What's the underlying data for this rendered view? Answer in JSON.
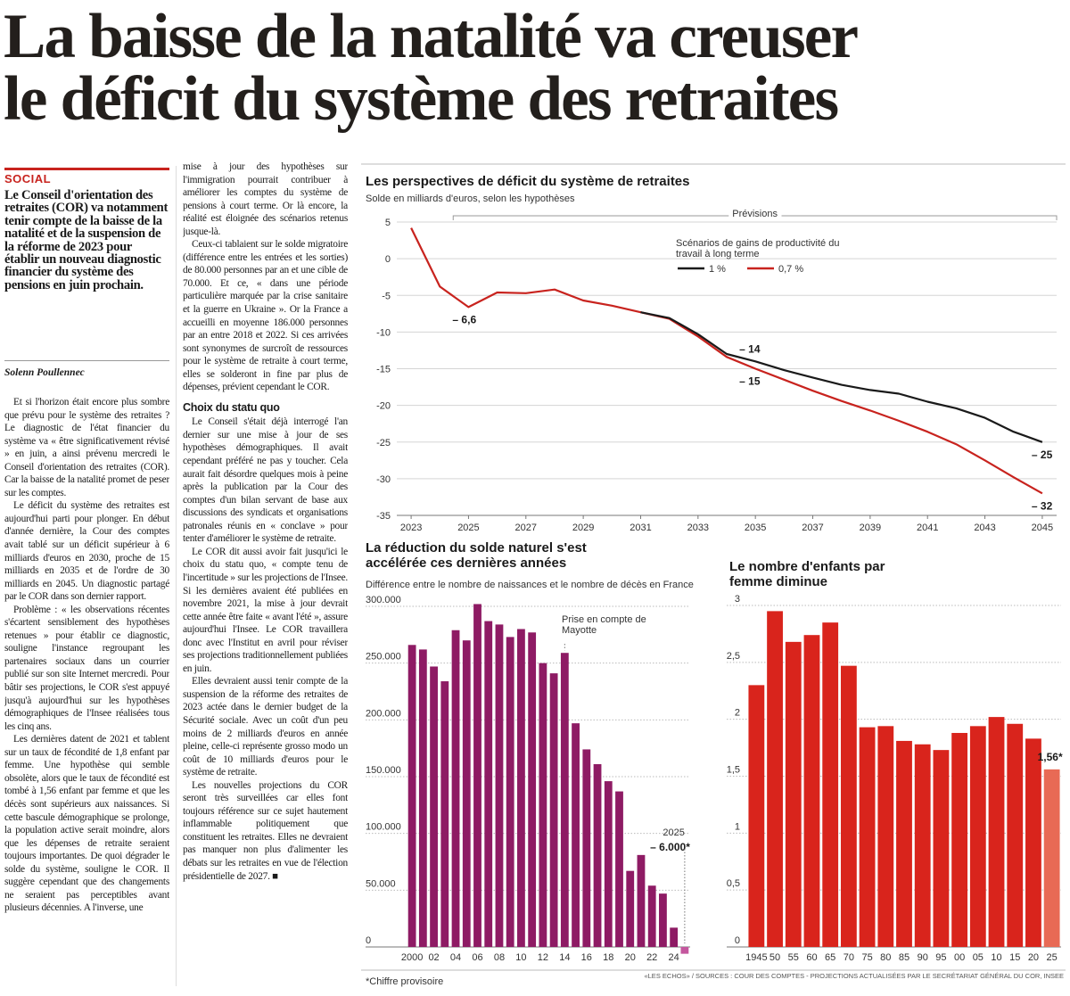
{
  "headline": [
    "La baisse de la natalité va creuser",
    "le déficit du système des retraites"
  ],
  "article": {
    "section": "SOCIAL",
    "lead": "Le Conseil d'orientation des retraites (COR) va notamment tenir compte de la baisse de la natalité et de la suspension de la réforme de 2023 pour établir un nouveau diagnostic financier du système des pensions en juin prochain.",
    "byline": "Solenn Poullennec",
    "column1": [
      "Et si l'horizon était encore plus sombre que prévu pour le système des retraites ? Le diagnostic de l'état financier du système va « être significativement révisé » en juin, a ainsi prévenu mercredi le Conseil d'orientation des retraites (COR). Car la baisse de la natalité promet de peser sur les comptes.",
      "Le déficit du système des retraites est aujourd'hui parti pour plonger. En début d'année dernière, la Cour des comptes avait tablé sur un déficit supérieur à 6 milliards d'euros en 2030, proche de 15 milliards en 2035 et de l'ordre de 30 milliards en 2045. Un diagnostic partagé par le COR dans son dernier rapport.",
      "Problème : « les observations récentes s'écartent sensiblement des hypothèses retenues » pour établir ce diagnostic, souligne l'instance regroupant les partenaires sociaux dans un courrier publié sur son site Internet mercredi. Pour bâtir ses projections, le COR s'est appuyé jusqu'à aujourd'hui sur les hypothèses démographiques de l'Insee réalisées tous les cinq ans.",
      "Les dernières datent de 2021 et tablent sur un taux de fécondité de 1,8 enfant par femme. Une hypothèse qui semble obsolète, alors que le taux de fécondité est tombé à 1,56 enfant par femme et que les décès sont supérieurs aux naissances. Si cette bascule démographique se prolonge, la population active serait moindre, alors que les dépenses de retraite seraient toujours importantes. De quoi dégrader le solde du système, souligne le COR. Il suggère cependant que des changements ne seraient pas perceptibles avant plusieurs décennies. A l'inverse, une"
    ],
    "column2": [
      "mise à jour des hypothèses sur l'immigration pourrait contribuer à améliorer les comptes du système de pensions à court terme. Or là encore, la réalité est éloignée des scénarios retenus jusque-là.",
      "Ceux-ci tablaient sur le solde migratoire (différence entre les entrées et les sorties) de 80.000 personnes par an et une cible de 70.000. Et ce, « dans une période particulière marquée par la crise sanitaire et la guerre en Ukraine ». Or la France a accueilli en moyenne 186.000 personnes par an entre 2018 et 2022. Si ces arrivées sont synonymes de surcroît de ressources pour le système de retraite à court terme, elles se solderont in fine par plus de dépenses, prévient cependant le COR."
    ],
    "subhead": "Choix du statu quo",
    "column2_after": [
      "Le Conseil s'était déjà interrogé l'an dernier sur une mise à jour de ses hypothèses démographiques. Il avait cependant préféré ne pas y toucher. Cela aurait fait désordre quelques mois à peine après la publication par la Cour des comptes d'un bilan servant de base aux discussions des syndicats et organisations patronales réunis en « conclave » pour tenter d'améliorer le système de retraite.",
      "Le COR dit aussi avoir fait jusqu'ici le choix du statu quo, « compte tenu de l'incertitude » sur les projections de l'Insee. Si les dernières avaient été publiées en novembre 2021, la mise à jour devrait cette année être faite « avant l'été », assure aujourd'hui l'Insee. Le COR travaillera donc avec l'Institut en avril pour réviser ses projections traditionnellement publiées en juin.",
      "Elles devraient aussi tenir compte de la suspension de la réforme des retraites de 2023 actée dans le dernier budget de la Sécurité sociale. Avec un coût d'un peu moins de 2 milliards d'euros en année pleine, celle-ci représente grosso modo un coût de 10 milliards d'euros pour le système de retraite.",
      "Les nouvelles projections du COR seront très surveillées car elles font toujours référence sur ce sujet hautement inflammable politiquement que constituent les retraites. Elles ne devraient pas manquer non plus d'alimenter les débats sur les retraites en vue de l'élection présidentielle de 2027. ■"
    ]
  },
  "chart_data": [
    {
      "type": "line",
      "title": "Les perspectives de déficit du système de retraites",
      "subtitle": "Solde en milliards d'euros, selon les hypothèses",
      "forecast_label": "Prévisions",
      "legend_title": "Scénarios de gains de productivité du travail à long terme",
      "x": [
        2023,
        2024,
        2025,
        2026,
        2027,
        2028,
        2029,
        2030,
        2031,
        2032,
        2033,
        2034,
        2035,
        2036,
        2037,
        2038,
        2039,
        2040,
        2041,
        2042,
        2043,
        2044,
        2045
      ],
      "series": [
        {
          "name": "0,7 %",
          "color": "#c8231e",
          "values": [
            4.2,
            -3.8,
            -6.6,
            -4.6,
            -4.7,
            -4.2,
            -5.7,
            -6.4,
            -7.3,
            -8.2,
            -10.6,
            -13.4,
            -15,
            -16.5,
            -18,
            -19.4,
            -20.7,
            -22.1,
            -23.6,
            -25.3,
            -27.5,
            -29.8,
            -32
          ],
          "value_labels": [
            null,
            null,
            "– 6,6",
            null,
            null,
            null,
            null,
            null,
            null,
            null,
            null,
            null,
            "– 15",
            null,
            null,
            null,
            null,
            null,
            null,
            null,
            null,
            null,
            "– 32"
          ]
        },
        {
          "name": "1 %",
          "color": "#1a1a1a",
          "values": [
            null,
            null,
            null,
            null,
            null,
            null,
            null,
            null,
            -7.3,
            -8.1,
            -10.3,
            -13,
            -14,
            -15.2,
            -16.2,
            -17.2,
            -17.9,
            -18.4,
            -19.5,
            -20.4,
            -21.7,
            -23.6,
            -25
          ],
          "value_labels": [
            null,
            null,
            null,
            null,
            null,
            null,
            null,
            null,
            null,
            null,
            null,
            null,
            "– 14",
            null,
            null,
            null,
            null,
            null,
            null,
            null,
            null,
            null,
            "– 25"
          ]
        }
      ],
      "xlim": [
        2022.5,
        2045.5
      ],
      "xticks": [
        2023,
        2025,
        2027,
        2029,
        2031,
        2033,
        2035,
        2037,
        2039,
        2041,
        2043,
        2045
      ],
      "ylim": [
        -35,
        5
      ],
      "yticks": [
        5,
        0,
        -5,
        -10,
        -15,
        -20,
        -25,
        -30,
        -35
      ],
      "grid": true
    },
    {
      "type": "bar",
      "title": "La réduction du solde naturel s'est accélérée ces dernières années",
      "subtitle": "Différence entre le nombre de naissances et le nombre de décès en France",
      "annotations": [
        "Prise en compte de Mayotte",
        "2025"
      ],
      "categories": [
        "2000",
        null,
        "02",
        null,
        "04",
        null,
        "06",
        null,
        "08",
        null,
        "10",
        null,
        "12",
        null,
        "14",
        null,
        "16",
        null,
        "18",
        null,
        "20",
        null,
        "22",
        null,
        "24",
        null
      ],
      "values": [
        266000,
        262000,
        247000,
        234000,
        279000,
        270000,
        302000,
        287000,
        284000,
        273000,
        280000,
        277000,
        250000,
        241000,
        259000,
        197000,
        174000,
        161000,
        146000,
        137000,
        67000,
        81000,
        54000,
        47000,
        17000,
        -6000
      ],
      "value_labels": [
        null,
        null,
        null,
        null,
        null,
        null,
        null,
        null,
        null,
        null,
        null,
        null,
        null,
        null,
        null,
        null,
        null,
        null,
        null,
        null,
        null,
        null,
        null,
        null,
        null,
        "– 6.000*"
      ],
      "colors": [
        "#8e1b64",
        "#8e1b64",
        "#8e1b64",
        "#8e1b64",
        "#8e1b64",
        "#8e1b64",
        "#8e1b64",
        "#8e1b64",
        "#8e1b64",
        "#8e1b64",
        "#8e1b64",
        "#8e1b64",
        "#8e1b64",
        "#8e1b64",
        "#8e1b64",
        "#8e1b64",
        "#8e1b64",
        "#8e1b64",
        "#8e1b64",
        "#8e1b64",
        "#8e1b64",
        "#8e1b64",
        "#8e1b64",
        "#8e1b64",
        "#8e1b64",
        "#c4579e"
      ],
      "ylim": [
        0,
        300000
      ],
      "yticks": [
        0,
        {
          "value": 50000,
          "label": "50.000"
        },
        {
          "value": 100000,
          "label": "100.000"
        },
        {
          "value": 150000,
          "label": "150.000"
        },
        {
          "value": 200000,
          "label": "200.000"
        },
        {
          "value": 250000,
          "label": "250.000"
        },
        {
          "value": 300000,
          "label": "300.000"
        }
      ],
      "grid": true
    },
    {
      "type": "bar",
      "title": "Le nombre d'enfants par femme diminue",
      "categories": [
        "1945",
        "50",
        "55",
        "60",
        "65",
        "70",
        "75",
        "80",
        "85",
        "90",
        "95",
        "00",
        "05",
        "10",
        "15",
        "20",
        "25"
      ],
      "values": [
        2.3,
        2.95,
        2.68,
        2.74,
        2.85,
        2.47,
        1.93,
        1.94,
        1.81,
        1.78,
        1.73,
        1.88,
        1.94,
        2.02,
        1.96,
        1.83,
        1.56
      ],
      "value_labels": [
        null,
        null,
        null,
        null,
        null,
        null,
        null,
        null,
        null,
        null,
        null,
        null,
        null,
        null,
        null,
        null,
        "1,56*"
      ],
      "colors": [
        "#d9241c",
        "#d9241c",
        "#d9241c",
        "#d9241c",
        "#d9241c",
        "#d9241c",
        "#d9241c",
        "#d9241c",
        "#d9241c",
        "#d9241c",
        "#d9241c",
        "#d9241c",
        "#d9241c",
        "#d9241c",
        "#d9241c",
        "#d9241c",
        "#e86a55"
      ],
      "ylim": [
        0,
        3
      ],
      "yticks": [
        0,
        {
          "value": 0.5,
          "label": "0,5"
        },
        1,
        {
          "value": 1.5,
          "label": "1,5"
        },
        2,
        {
          "value": 2.5,
          "label": "2,5"
        },
        3
      ],
      "grid": true
    }
  ],
  "footer": {
    "note": "*Chiffre provisoire",
    "credits": "«LES ECHOS» / SOURCES : COUR DES COMPTES - PROJECTIONS ACTUALISÉES PAR LE SECRÉTARIAT GÉNÉRAL DU COR, INSEE"
  }
}
